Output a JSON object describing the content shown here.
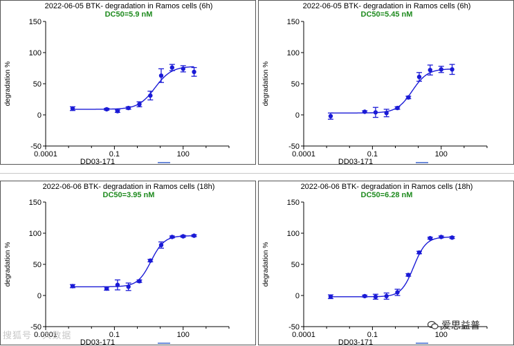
{
  "chart_data": [
    {
      "type": "scatter",
      "title": "2022-06-05   BTK- degradation in Ramos cells (6h)",
      "subtitle": "DC50=5.9  nM",
      "xlabel": "DD03-171",
      "ylabel": "degradation %",
      "xscale": "log",
      "xlim": [
        0.0001,
        10000
      ],
      "ylim": [
        -50,
        150
      ],
      "yticks": [
        "150",
        "100",
        "50",
        "0",
        "-50"
      ],
      "xticks": [
        "0.0001",
        "0.1",
        "100"
      ],
      "bottom": 9,
      "top": 78,
      "ec50": 5.9,
      "hill": 1.2,
      "points": [
        {
          "x": 0.0015,
          "y": 10,
          "err": 3
        },
        {
          "x": 0.046,
          "y": 9,
          "err": 1.5
        },
        {
          "x": 0.137,
          "y": 6,
          "err": 2
        },
        {
          "x": 0.41,
          "y": 11,
          "err": 2
        },
        {
          "x": 1.23,
          "y": 17,
          "err": 4
        },
        {
          "x": 3.7,
          "y": 31,
          "err": 7
        },
        {
          "x": 11,
          "y": 63,
          "err": 11
        },
        {
          "x": 33,
          "y": 76,
          "err": 5
        },
        {
          "x": 100,
          "y": 74,
          "err": 5
        },
        {
          "x": 300,
          "y": 69,
          "err": 7
        }
      ]
    },
    {
      "type": "scatter",
      "title": "2022-06-05   BTK- degradation in Ramos cells (6h)",
      "subtitle": "DC50=5.45  nM",
      "xlabel": "DD03-171",
      "ylabel": "degradation %",
      "xscale": "log",
      "xlim": [
        0.0001,
        10000
      ],
      "ylim": [
        -50,
        150
      ],
      "yticks": [
        "150",
        "100",
        "50",
        "0",
        "-50"
      ],
      "xticks": [
        "0.0001",
        "0.1",
        "100"
      ],
      "bottom": 3,
      "top": 74,
      "ec50": 5.45,
      "hill": 1.3,
      "points": [
        {
          "x": 0.0015,
          "y": -2,
          "err": 5
        },
        {
          "x": 0.046,
          "y": 5,
          "err": 1.5
        },
        {
          "x": 0.137,
          "y": 4,
          "err": 8
        },
        {
          "x": 0.41,
          "y": 3,
          "err": 6
        },
        {
          "x": 1.23,
          "y": 11,
          "err": 2
        },
        {
          "x": 3.7,
          "y": 28,
          "err": 2
        },
        {
          "x": 11,
          "y": 61,
          "err": 7
        },
        {
          "x": 33,
          "y": 72,
          "err": 8
        },
        {
          "x": 100,
          "y": 73,
          "err": 5
        },
        {
          "x": 300,
          "y": 73,
          "err": 8
        }
      ]
    },
    {
      "type": "scatter",
      "title": "2022-06-06   BTK- degradation in Ramos cells (18h)",
      "subtitle": "DC50=3.95  nM",
      "xlabel": "DD03-171",
      "ylabel": "degradation %",
      "xscale": "log",
      "xlim": [
        0.0001,
        10000
      ],
      "ylim": [
        -50,
        150
      ],
      "yticks": [
        "150",
        "100",
        "50",
        "0",
        "-50"
      ],
      "xticks": [
        "0.0001",
        "0.1",
        "100"
      ],
      "bottom": 14,
      "top": 96,
      "ec50": 3.95,
      "hill": 1.5,
      "points": [
        {
          "x": 0.0015,
          "y": 15,
          "err": 2.5
        },
        {
          "x": 0.046,
          "y": 11,
          "err": 2.5
        },
        {
          "x": 0.137,
          "y": 17,
          "err": 8
        },
        {
          "x": 0.41,
          "y": 14,
          "err": 6
        },
        {
          "x": 1.23,
          "y": 23,
          "err": 2
        },
        {
          "x": 3.7,
          "y": 56,
          "err": 2
        },
        {
          "x": 11,
          "y": 81,
          "err": 5
        },
        {
          "x": 33,
          "y": 94,
          "err": 1.5
        },
        {
          "x": 100,
          "y": 95,
          "err": 1.5
        },
        {
          "x": 300,
          "y": 96,
          "err": 1.5
        }
      ]
    },
    {
      "type": "scatter",
      "title": "2022-06-06   BTK- degradation in Ramos cells (18h)",
      "subtitle": "DC50=6.28  nM",
      "xlabel": "DD03-171",
      "ylabel": "degradation %",
      "xscale": "log",
      "xlim": [
        0.0001,
        10000
      ],
      "ylim": [
        -50,
        150
      ],
      "yticks": [
        "150",
        "100",
        "50",
        "0",
        "-50"
      ],
      "xticks": [
        "0.0001",
        "0.1",
        "100"
      ],
      "bottom": -2,
      "top": 94,
      "ec50": 6.28,
      "hill": 1.6,
      "points": [
        {
          "x": 0.0015,
          "y": -2,
          "err": 3
        },
        {
          "x": 0.046,
          "y": -1,
          "err": 1.5
        },
        {
          "x": 0.137,
          "y": -2,
          "err": 4
        },
        {
          "x": 0.41,
          "y": -1,
          "err": 5
        },
        {
          "x": 1.23,
          "y": 5,
          "err": 5
        },
        {
          "x": 3.7,
          "y": 33,
          "err": 2
        },
        {
          "x": 11,
          "y": 69,
          "err": 2
        },
        {
          "x": 33,
          "y": 92,
          "err": 1.5
        },
        {
          "x": 100,
          "y": 94,
          "err": 1.5
        },
        {
          "x": 300,
          "y": 93,
          "err": 1.5
        }
      ]
    }
  ],
  "colors": {
    "series": "#1a1ad6",
    "dc50": "#1d8a1d",
    "axis": "#000000"
  },
  "watermark": {
    "left": "搜狐号 · 大数据",
    "right": "爱思益普"
  }
}
